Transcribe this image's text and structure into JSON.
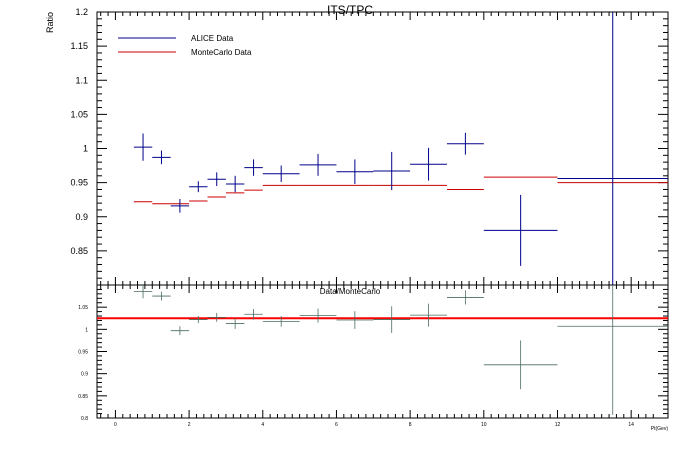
{
  "chart_data": [
    {
      "type": "scatter",
      "title": "ITS/TPC",
      "ylabel": "Ratio",
      "xlim": [
        -0.5,
        15
      ],
      "ylim": [
        0.8,
        1.2
      ],
      "y_ticks": [
        "1.2",
        "1.15",
        "1.1",
        "1.05",
        "1",
        "0.95",
        "0.9",
        "0.85"
      ],
      "legend": {
        "placement": "top-left",
        "entries": [
          "ALICE Data",
          "MonteCarlo Data"
        ]
      },
      "colors": {
        "alice": "#00008b",
        "mc": "#cc0000"
      },
      "series": [
        {
          "name": "ALICE Data",
          "style": "errorbar",
          "points": [
            {
              "x": 0.75,
              "xerr": 0.25,
              "y": 1.002,
              "yerr": 0.02
            },
            {
              "x": 1.25,
              "xerr": 0.25,
              "y": 0.987,
              "yerr": 0.01
            },
            {
              "x": 1.75,
              "xerr": 0.25,
              "y": 0.916,
              "yerr": 0.01
            },
            {
              "x": 2.25,
              "xerr": 0.25,
              "y": 0.944,
              "yerr": 0.008
            },
            {
              "x": 2.75,
              "xerr": 0.25,
              "y": 0.955,
              "yerr": 0.01
            },
            {
              "x": 3.25,
              "xerr": 0.25,
              "y": 0.948,
              "yerr": 0.012
            },
            {
              "x": 3.75,
              "xerr": 0.25,
              "y": 0.972,
              "yerr": 0.012
            },
            {
              "x": 4.5,
              "xerr": 0.5,
              "y": 0.963,
              "yerr": 0.012
            },
            {
              "x": 5.5,
              "xerr": 0.5,
              "y": 0.976,
              "yerr": 0.016
            },
            {
              "x": 6.5,
              "xerr": 0.5,
              "y": 0.966,
              "yerr": 0.018
            },
            {
              "x": 7.5,
              "xerr": 0.5,
              "y": 0.967,
              "yerr": 0.028
            },
            {
              "x": 8.5,
              "xerr": 0.5,
              "y": 0.977,
              "yerr": 0.024
            },
            {
              "x": 9.5,
              "xerr": 0.5,
              "y": 1.007,
              "yerr": 0.016
            },
            {
              "x": 11.0,
              "xerr": 1.0,
              "y": 0.88,
              "yerr": 0.052
            },
            {
              "x": 13.5,
              "xerr": 1.5,
              "y": 0.956,
              "yerr": 0.25
            }
          ]
        },
        {
          "name": "MonteCarlo Data",
          "style": "step",
          "bins": [
            {
              "x0": 0.5,
              "x1": 1.0,
              "y": 0.922
            },
            {
              "x0": 1.0,
              "x1": 1.5,
              "y": 0.919
            },
            {
              "x0": 1.5,
              "x1": 2.0,
              "y": 0.919
            },
            {
              "x0": 2.0,
              "x1": 2.5,
              "y": 0.923
            },
            {
              "x0": 2.5,
              "x1": 3.0,
              "y": 0.929
            },
            {
              "x0": 3.0,
              "x1": 3.5,
              "y": 0.935
            },
            {
              "x0": 3.5,
              "x1": 4.0,
              "y": 0.939
            },
            {
              "x0": 4.0,
              "x1": 5.0,
              "y": 0.946
            },
            {
              "x0": 5.0,
              "x1": 6.0,
              "y": 0.946
            },
            {
              "x0": 6.0,
              "x1": 7.0,
              "y": 0.946
            },
            {
              "x0": 7.0,
              "x1": 8.0,
              "y": 0.946
            },
            {
              "x0": 8.0,
              "x1": 9.0,
              "y": 0.946
            },
            {
              "x0": 9.0,
              "x1": 10.0,
              "y": 0.94
            },
            {
              "x0": 10.0,
              "x1": 12.0,
              "y": 0.958
            },
            {
              "x0": 12.0,
              "x1": 15.0,
              "y": 0.95
            }
          ]
        }
      ]
    },
    {
      "type": "scatter",
      "title": "Data/MonteCarlo",
      "xlabel": "Pt(Gev)",
      "xlim": [
        -0.5,
        15
      ],
      "ylim": [
        0.8,
        1.1
      ],
      "x_ticks": [
        "0",
        "2",
        "4",
        "6",
        "8",
        "10",
        "12",
        "14"
      ],
      "y_ticks": [
        "1.05",
        "1",
        "0.95",
        "0.9",
        "0.85",
        "0.8"
      ],
      "reference_line": 1.025,
      "colors": {
        "ratio": "#4a6b5e",
        "reference": "#ff0000"
      },
      "series": [
        {
          "name": "Data/MonteCarlo",
          "style": "errorbar",
          "points": [
            {
              "x": 0.75,
              "xerr": 0.25,
              "y": 1.085,
              "yerr": 0.015
            },
            {
              "x": 1.25,
              "xerr": 0.25,
              "y": 1.075,
              "yerr": 0.01
            },
            {
              "x": 1.75,
              "xerr": 0.25,
              "y": 0.997,
              "yerr": 0.01
            },
            {
              "x": 2.25,
              "xerr": 0.25,
              "y": 1.022,
              "yerr": 0.008
            },
            {
              "x": 2.75,
              "xerr": 0.25,
              "y": 1.027,
              "yerr": 0.01
            },
            {
              "x": 3.25,
              "xerr": 0.25,
              "y": 1.013,
              "yerr": 0.012
            },
            {
              "x": 3.75,
              "xerr": 0.25,
              "y": 1.034,
              "yerr": 0.012
            },
            {
              "x": 4.5,
              "xerr": 0.5,
              "y": 1.018,
              "yerr": 0.012
            },
            {
              "x": 5.5,
              "xerr": 0.5,
              "y": 1.031,
              "yerr": 0.016
            },
            {
              "x": 6.5,
              "xerr": 0.5,
              "y": 1.021,
              "yerr": 0.02
            },
            {
              "x": 7.5,
              "xerr": 0.5,
              "y": 1.022,
              "yerr": 0.03
            },
            {
              "x": 8.5,
              "xerr": 0.5,
              "y": 1.032,
              "yerr": 0.026
            },
            {
              "x": 9.5,
              "xerr": 0.5,
              "y": 1.072,
              "yerr": 0.016
            },
            {
              "x": 11.0,
              "xerr": 1.0,
              "y": 0.92,
              "yerr": 0.055
            },
            {
              "x": 13.5,
              "xerr": 1.5,
              "y": 1.007,
              "yerr": 0.2
            }
          ]
        }
      ]
    }
  ]
}
